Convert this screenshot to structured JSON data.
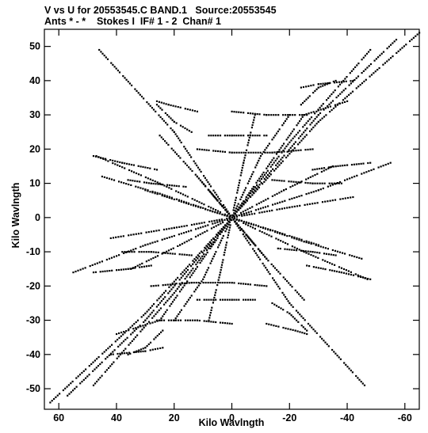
{
  "header": {
    "line1": "V vs U for 20553545.C BAND.1   Source:20553545",
    "line2": "Ants * - *    Stokes I  IF# 1 - 2  Chan# 1"
  },
  "chart_data": {
    "type": "scatter",
    "title": "V vs U for 20553545.C BAND.1   Source:20553545",
    "subtitle": "Ants * - *    Stokes I  IF# 1 - 2  Chan# 1",
    "xlabel": "Kilo Wavlngth",
    "ylabel": "Kilo Wavlngth",
    "xlim": [
      65,
      -65
    ],
    "ylim": [
      -56,
      55
    ],
    "x_ticks": [
      60,
      40,
      20,
      0,
      -20,
      -40,
      -60
    ],
    "x_tick_labels": [
      "60",
      "40",
      "20",
      "0",
      "-20",
      "-40",
      "-60"
    ],
    "y_ticks": [
      50,
      40,
      30,
      20,
      10,
      0,
      -10,
      -20,
      -30,
      -40,
      -50
    ],
    "y_tick_labels": [
      "50",
      "40",
      "30",
      "20",
      "10",
      "0",
      "-10",
      "-20",
      "-30",
      "-40",
      "-50"
    ],
    "baseline_tracks": [
      {
        "x": [
          -65,
          -30,
          0
        ],
        "y": [
          54,
          28,
          0
        ]
      },
      {
        "x": [
          63,
          30,
          0
        ],
        "y": [
          -54,
          -28,
          0
        ]
      },
      {
        "x": [
          46,
          20,
          0
        ],
        "y": [
          49,
          25,
          0
        ]
      },
      {
        "x": [
          -46,
          -20,
          0
        ],
        "y": [
          -49,
          -25,
          0
        ]
      },
      {
        "x": [
          57,
          30,
          0
        ],
        "y": [
          -52,
          -30,
          0
        ]
      },
      {
        "x": [
          -57,
          -30,
          0
        ],
        "y": [
          52,
          30,
          0
        ]
      },
      {
        "x": [
          48,
          20,
          0
        ],
        "y": [
          -49,
          -22,
          0
        ]
      },
      {
        "x": [
          -48,
          -20,
          0
        ],
        "y": [
          49,
          22,
          0
        ]
      },
      {
        "x": [
          40,
          25,
          0
        ],
        "y": [
          -34,
          -30,
          0
        ]
      },
      {
        "x": [
          -40,
          -25,
          0
        ],
        "y": [
          34,
          30,
          0
        ]
      },
      {
        "x": [
          20,
          10,
          0
        ],
        "y": [
          -30,
          -18,
          0
        ]
      },
      {
        "x": [
          -20,
          -10,
          0
        ],
        "y": [
          30,
          18,
          0
        ]
      },
      {
        "x": [
          8,
          4,
          0
        ],
        "y": [
          -30,
          -16,
          0
        ]
      },
      {
        "x": [
          -8,
          -4,
          0
        ],
        "y": [
          30,
          16,
          0
        ]
      },
      {
        "x": [
          -25,
          -12,
          0
        ],
        "y": [
          -24,
          -12,
          0
        ]
      },
      {
        "x": [
          25,
          12,
          0
        ],
        "y": [
          24,
          12,
          0
        ]
      },
      {
        "x": [
          -45,
          -25,
          0
        ],
        "y": [
          -12,
          -7,
          0
        ]
      },
      {
        "x": [
          45,
          25,
          0
        ],
        "y": [
          12,
          7,
          0
        ]
      },
      {
        "x": [
          47,
          25,
          0
        ],
        "y": [
          18,
          10,
          0
        ]
      },
      {
        "x": [
          -47,
          -25,
          0
        ],
        "y": [
          -18,
          -10,
          0
        ]
      },
      {
        "x": [
          55,
          30,
          0
        ],
        "y": [
          -16,
          -8,
          0
        ]
      },
      {
        "x": [
          -55,
          -30,
          0
        ],
        "y": [
          16,
          8,
          0
        ]
      },
      {
        "x": [
          -42,
          -20,
          0
        ],
        "y": [
          6,
          3,
          0
        ]
      },
      {
        "x": [
          42,
          20,
          0
        ],
        "y": [
          -6,
          -3,
          0
        ]
      },
      {
        "x": [
          -30,
          -15,
          0
        ],
        "y": [
          -8,
          -4,
          0
        ]
      },
      {
        "x": [
          30,
          15,
          0
        ],
        "y": [
          8,
          4,
          0
        ]
      },
      {
        "x": [
          12,
          6,
          0
        ],
        "y": [
          12,
          6,
          0
        ]
      },
      {
        "x": [
          -12,
          -6,
          0
        ],
        "y": [
          -12,
          -6,
          0
        ]
      },
      {
        "x": [
          -35,
          -18,
          0
        ],
        "y": [
          15,
          8,
          0
        ]
      },
      {
        "x": [
          35,
          18,
          0
        ],
        "y": [
          -15,
          -8,
          0
        ]
      }
    ],
    "arc_series": [
      {
        "x": [
          -24,
          -30,
          -42
        ],
        "y": [
          38,
          39,
          40
        ]
      },
      {
        "x": [
          24,
          30,
          42
        ],
        "y": [
          -38,
          -39,
          -40
        ]
      },
      {
        "x": [
          0,
          -12,
          -26
        ],
        "y": [
          31,
          30,
          30
        ]
      },
      {
        "x": [
          0,
          12,
          26
        ],
        "y": [
          -31,
          -30,
          -30
        ]
      },
      {
        "x": [
          8,
          0,
          -12
        ],
        "y": [
          24,
          24,
          24
        ]
      },
      {
        "x": [
          -8,
          0,
          12
        ],
        "y": [
          -24,
          -24,
          -24
        ]
      },
      {
        "x": [
          26,
          22,
          12
        ],
        "y": [
          34,
          33,
          31
        ]
      },
      {
        "x": [
          -26,
          -22,
          -12
        ],
        "y": [
          -34,
          -33,
          -31
        ]
      },
      {
        "x": [
          12,
          0,
          -14,
          -28
        ],
        "y": [
          20,
          19,
          19,
          20
        ]
      },
      {
        "x": [
          -12,
          0,
          14,
          28
        ],
        "y": [
          -20,
          -19,
          -19,
          -20
        ]
      },
      {
        "x": [
          -28,
          -36,
          -48
        ],
        "y": [
          14,
          15,
          16
        ]
      },
      {
        "x": [
          28,
          36,
          48
        ],
        "y": [
          -14,
          -15,
          -16
        ]
      },
      {
        "x": [
          -14,
          -28,
          -38
        ],
        "y": [
          11,
          10,
          10
        ]
      },
      {
        "x": [
          14,
          28,
          38
        ],
        "y": [
          -11,
          -10,
          -10
        ]
      },
      {
        "x": [
          48,
          38,
          26
        ],
        "y": [
          18,
          16,
          14
        ]
      },
      {
        "x": [
          -48,
          -38,
          -26
        ],
        "y": [
          -18,
          -16,
          -14
        ]
      },
      {
        "x": [
          36,
          28,
          16
        ],
        "y": [
          11,
          10,
          9
        ]
      },
      {
        "x": [
          -36,
          -28,
          -16
        ],
        "y": [
          -11,
          -10,
          -9
        ]
      },
      {
        "x": [
          24,
          30,
          36
        ],
        "y": [
          -33,
          -38,
          -40
        ]
      },
      {
        "x": [
          -24,
          -30,
          -36
        ],
        "y": [
          33,
          38,
          40
        ]
      },
      {
        "x": [
          -14,
          -20,
          -26
        ],
        "y": [
          -25,
          -28,
          -33
        ]
      },
      {
        "x": [
          14,
          20,
          26
        ],
        "y": [
          25,
          28,
          33
        ]
      }
    ]
  }
}
